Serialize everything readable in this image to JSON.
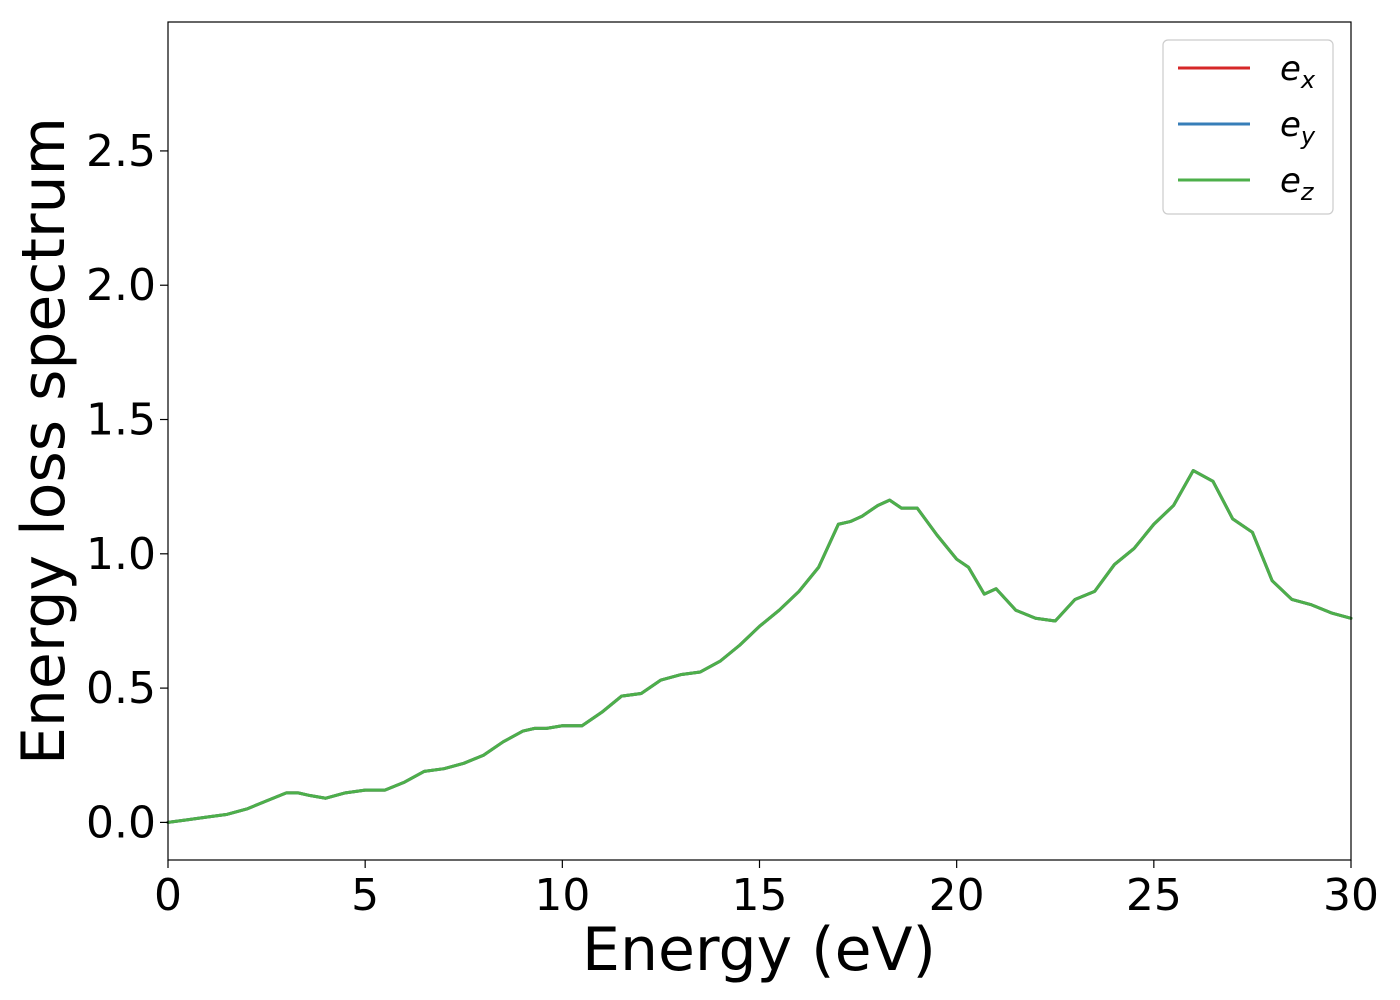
{
  "chart_data": {
    "type": "line",
    "title": "",
    "xlabel": "Energy (eV)",
    "ylabel": "Energy loss spectrum",
    "xlim": [
      0,
      30
    ],
    "ylim": [
      -0.14,
      2.98
    ],
    "xticks": [
      0,
      5,
      10,
      15,
      20,
      25,
      30
    ],
    "xtick_labels": [
      "0",
      "5",
      "10",
      "15",
      "20",
      "25",
      "30"
    ],
    "yticks": [
      0.0,
      0.5,
      1.0,
      1.5,
      2.0,
      2.5
    ],
    "ytick_labels": [
      "0.0",
      "0.5",
      "1.0",
      "1.5",
      "2.0",
      "2.5"
    ],
    "grid": false,
    "legend_position": "top-right",
    "x": [
      0,
      0.5,
      1.0,
      1.5,
      2.0,
      2.5,
      3.0,
      3.3,
      3.6,
      4.0,
      4.5,
      5.0,
      5.5,
      6.0,
      6.5,
      7.0,
      7.5,
      8.0,
      8.5,
      9.0,
      9.3,
      9.6,
      10.0,
      10.5,
      11.0,
      11.5,
      12.0,
      12.5,
      13.0,
      13.5,
      14.0,
      14.5,
      15.0,
      15.5,
      16.0,
      16.5,
      17.0,
      17.3,
      17.6,
      18.0,
      18.3,
      18.6,
      19.0,
      19.5,
      20.0,
      20.3,
      20.7,
      21.0,
      21.5,
      22.0,
      22.5,
      23.0,
      23.5,
      24.0,
      24.5,
      25.0,
      25.5,
      26.0,
      26.5,
      27.0,
      27.5,
      28.0,
      28.5,
      29.0,
      29.5,
      30.0
    ],
    "series": [
      {
        "name": "e_x",
        "label_base": "e",
        "label_sub": "x",
        "color": "#d62728",
        "values": [
          0.0,
          0.01,
          0.02,
          0.03,
          0.05,
          0.08,
          0.11,
          0.11,
          0.1,
          0.09,
          0.11,
          0.12,
          0.12,
          0.15,
          0.19,
          0.2,
          0.22,
          0.25,
          0.3,
          0.34,
          0.35,
          0.35,
          0.36,
          0.36,
          0.41,
          0.47,
          0.48,
          0.53,
          0.55,
          0.56,
          0.6,
          0.66,
          0.73,
          0.79,
          0.86,
          0.95,
          1.11,
          1.12,
          1.14,
          1.18,
          1.2,
          1.17,
          1.17,
          1.07,
          0.98,
          0.95,
          0.85,
          0.87,
          0.79,
          0.76,
          0.75,
          0.83,
          0.86,
          0.96,
          1.02,
          1.11,
          1.18,
          1.31,
          1.27,
          1.13,
          1.08,
          0.9,
          0.83,
          0.81,
          0.78,
          0.76
        ]
      },
      {
        "name": "e_y",
        "label_base": "e",
        "label_sub": "y",
        "color": "#377eb8",
        "values": [
          0.0,
          0.01,
          0.02,
          0.03,
          0.05,
          0.08,
          0.11,
          0.11,
          0.1,
          0.09,
          0.11,
          0.12,
          0.12,
          0.15,
          0.19,
          0.2,
          0.22,
          0.25,
          0.3,
          0.34,
          0.35,
          0.35,
          0.36,
          0.36,
          0.41,
          0.47,
          0.48,
          0.53,
          0.55,
          0.56,
          0.6,
          0.66,
          0.73,
          0.79,
          0.86,
          0.95,
          1.11,
          1.12,
          1.14,
          1.18,
          1.2,
          1.17,
          1.17,
          1.07,
          0.98,
          0.95,
          0.85,
          0.87,
          0.79,
          0.76,
          0.75,
          0.83,
          0.86,
          0.96,
          1.02,
          1.11,
          1.18,
          1.31,
          1.27,
          1.13,
          1.08,
          0.9,
          0.83,
          0.81,
          0.78,
          0.76
        ]
      },
      {
        "name": "e_z",
        "label_base": "e",
        "label_sub": "z",
        "color": "#4daf4a",
        "values": [
          0.0,
          0.01,
          0.02,
          0.03,
          0.05,
          0.08,
          0.11,
          0.11,
          0.1,
          0.09,
          0.11,
          0.12,
          0.12,
          0.15,
          0.19,
          0.2,
          0.22,
          0.25,
          0.3,
          0.34,
          0.35,
          0.35,
          0.36,
          0.36,
          0.41,
          0.47,
          0.48,
          0.53,
          0.55,
          0.56,
          0.6,
          0.66,
          0.73,
          0.79,
          0.86,
          0.95,
          1.11,
          1.12,
          1.14,
          1.18,
          1.2,
          1.17,
          1.17,
          1.07,
          0.98,
          0.95,
          0.85,
          0.87,
          0.79,
          0.76,
          0.75,
          0.83,
          0.86,
          0.96,
          1.02,
          1.11,
          1.18,
          1.31,
          1.27,
          1.13,
          1.08,
          0.9,
          0.83,
          0.81,
          0.78,
          0.76
        ]
      }
    ]
  }
}
